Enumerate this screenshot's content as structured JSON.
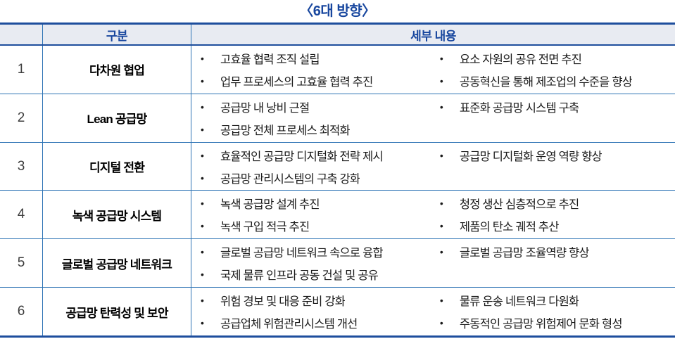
{
  "title": "〈6대 방향〉",
  "ui": {
    "bullet": "•"
  },
  "colors": {
    "accent_blue": "#17469e",
    "grid_blue": "#2e74b5",
    "thick_border_blue": "#1e4e9d",
    "header_bg": "#e8ebf2",
    "body_text": "#1a1a1a"
  },
  "table": {
    "headers": {
      "no": "",
      "category": "구분",
      "details": "세부 내용"
    },
    "rows": [
      {
        "no": "1",
        "category": "다차원 협업",
        "left": [
          "고효율 협력 조직 설립",
          "업무 프로세스의 고효율 협력 추진"
        ],
        "right": [
          "요소 자원의 공유 전면 추진",
          "공동혁신을 통해 제조업의 수준을 향상"
        ]
      },
      {
        "no": "2",
        "category": "Lean 공급망",
        "left": [
          "공급망 내 낭비 근절",
          "공급망 전체 프로세스 최적화"
        ],
        "right": [
          "표준화 공급망 시스템 구축"
        ]
      },
      {
        "no": "3",
        "category": "디지털 전환",
        "left": [
          "효율적인 공급망 디지털화 전략 제시",
          "공급망 관리시스템의 구축 강화"
        ],
        "right": [
          "공급망 디지털화 운영 역량 향상"
        ]
      },
      {
        "no": "4",
        "category": "녹색 공급망 시스템",
        "left": [
          "녹색 공급망 설계 추진",
          "녹색 구입 적극 추진"
        ],
        "right": [
          "청정 생산 심층적으로 추진",
          "제품의 탄소 궤적 추산"
        ]
      },
      {
        "no": "5",
        "category": "글로벌 공급망 네트워크",
        "left": [
          "글로벌 공급망 네트워크 속으로 융합",
          "국제 물류 인프라 공동 건설 및 공유"
        ],
        "right": [
          "글로벌 공급망 조율역량 향상"
        ]
      },
      {
        "no": "6",
        "category": "공급망 탄력성 및 보안",
        "left": [
          "위험 경보 및 대응 준비 강화",
          "공급업체 위험관리시스템 개선"
        ],
        "right": [
          "물류 운송 네트워크 다원화",
          "주동적인 공급망 위험제어 문화 형성"
        ]
      }
    ]
  }
}
